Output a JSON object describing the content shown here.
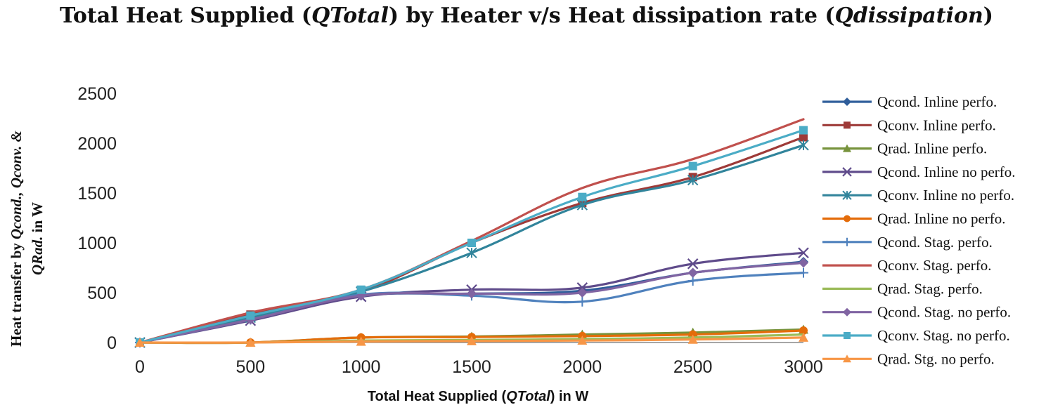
{
  "chart_data": {
    "type": "line",
    "title": {
      "prefix": "Total Heat Supplied (",
      "italic1": "QTotal",
      "middle": ") by Heater v/s Heat dissipation rate (",
      "italic2": "Qdissipation",
      "suffix": ")"
    },
    "xlabel": {
      "prefix": "Total Heat Supplied (",
      "italic": "QTotal",
      "suffix": ") in W"
    },
    "ylabel": {
      "line1_prefix": "Heat transfer by ",
      "line1_italic": "Qcond., Qconv. &",
      "line2_italic": "QRad.",
      "line2_suffix": " in W"
    },
    "x": [
      0,
      500,
      1000,
      1500,
      2000,
      2500,
      3000
    ],
    "x_ticks": [
      "0",
      "500",
      "1000",
      "1500",
      "2000",
      "2500",
      "3000"
    ],
    "y_ticks": [
      "0",
      "500",
      "1000",
      "1500",
      "2000",
      "2500"
    ],
    "xlim": [
      0,
      3000
    ],
    "ylim": [
      0,
      2500
    ],
    "grid": false,
    "legend_position": "right",
    "series": [
      {
        "name": "Qcond. Inline perfo.",
        "color": "#2f5d9a",
        "marker": "diamond",
        "values": [
          0,
          250,
          470,
          490,
          520,
          700,
          810
        ]
      },
      {
        "name": "Qconv. Inline perfo.",
        "color": "#9e3a38",
        "marker": "square",
        "values": [
          0,
          280,
          510,
          1000,
          1400,
          1660,
          2060
        ]
      },
      {
        "name": "Qrad. Inline perfo.",
        "color": "#77933c",
        "marker": "triangle",
        "values": [
          0,
          0,
          50,
          60,
          80,
          100,
          130
        ]
      },
      {
        "name": "Qcond. Inline no perfo.",
        "color": "#5f4b8b",
        "marker": "x",
        "values": [
          0,
          220,
          460,
          530,
          550,
          790,
          900
        ]
      },
      {
        "name": "Qconv. Inline no perfo.",
        "color": "#31849b",
        "marker": "star",
        "values": [
          0,
          250,
          510,
          900,
          1380,
          1630,
          1980
        ]
      },
      {
        "name": "Qrad. Inline no perfo.",
        "color": "#e46c0a",
        "marker": "circle",
        "values": [
          0,
          0,
          50,
          55,
          65,
          80,
          120
        ]
      },
      {
        "name": "Qcond. Stag. perfo.",
        "color": "#4f81bd",
        "marker": "plus",
        "values": [
          0,
          230,
          480,
          470,
          410,
          620,
          700
        ]
      },
      {
        "name": "Qconv. Stag. perfo.",
        "color": "#c0504d",
        "marker": "none",
        "values": [
          0,
          300,
          530,
          1020,
          1550,
          1840,
          2240
        ]
      },
      {
        "name": "Qrad. Stag. perfo.",
        "color": "#9bbb59",
        "marker": "none",
        "values": [
          0,
          0,
          20,
          25,
          35,
          50,
          80
        ]
      },
      {
        "name": "Qcond. Stag. no perfo.",
        "color": "#8064a2",
        "marker": "diamond",
        "values": [
          0,
          230,
          470,
          490,
          500,
          700,
          800
        ]
      },
      {
        "name": "Qconv. Stag. no perfo.",
        "color": "#4bacc6",
        "marker": "square",
        "values": [
          0,
          270,
          530,
          1000,
          1460,
          1770,
          2130
        ]
      },
      {
        "name": "Qrad. Stg. no perfo.",
        "color": "#f79646",
        "marker": "triangle",
        "values": [
          0,
          0,
          10,
          15,
          20,
          30,
          50
        ]
      }
    ]
  }
}
